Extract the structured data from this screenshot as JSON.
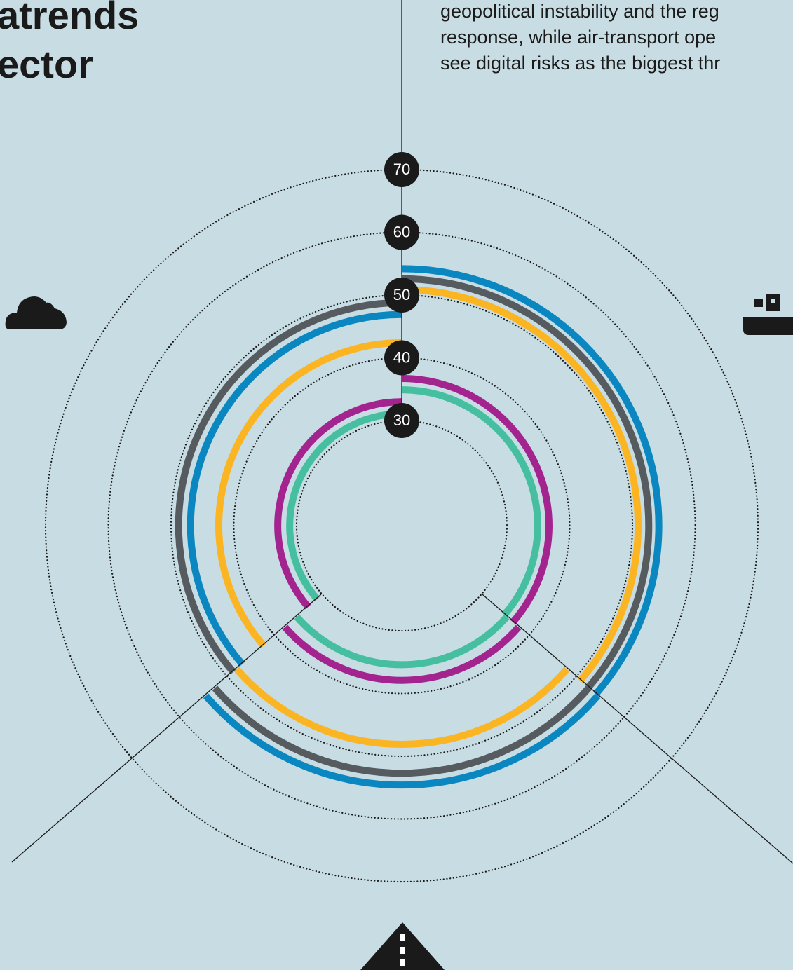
{
  "chart_data": {
    "type": "radial_bar",
    "title_lines": [
      "atrends",
      "ector"
    ],
    "text_lines": [
      "geopolitical instability and the reg",
      "response, while air-transport ope",
      "see digital risks as the biggest thr"
    ],
    "rlim": [
      30,
      70
    ],
    "rticks": [
      30,
      40,
      50,
      60,
      70
    ],
    "grid": true,
    "series": [
      {
        "color": "#0a87c0",
        "values": [
          54.2,
          54.6,
          46.9
        ]
      },
      {
        "color": "#565b60",
        "values": [
          52.6,
          52.7,
          48.8
        ]
      },
      {
        "color": "#fbb522",
        "values": [
          50.9,
          48.1,
          42.4
        ]
      },
      {
        "color": "#a3248f",
        "values": [
          36.7,
          37.9,
          33.0
        ]
      },
      {
        "color": "#45bfa0",
        "values": [
          34.9,
          35.4,
          31.1
        ]
      }
    ]
  }
}
